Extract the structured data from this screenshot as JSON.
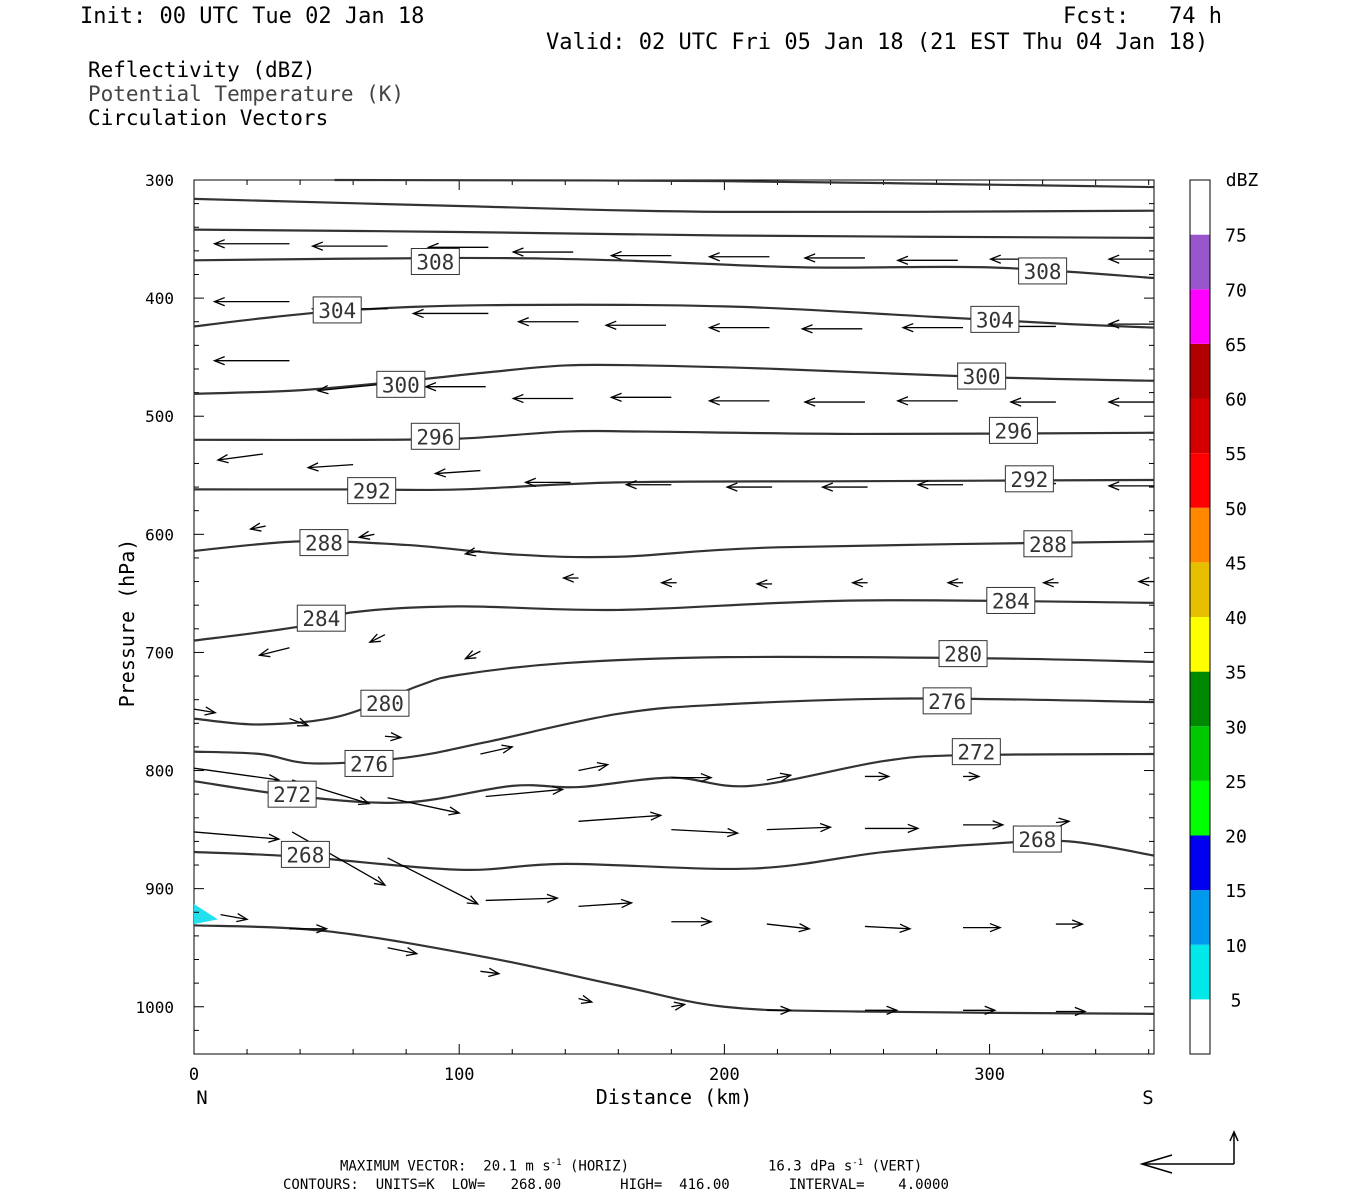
{
  "header": {
    "init": "Init: 00 UTC Tue 02 Jan 18",
    "fcst": "Fcst:   74 h",
    "valid": "Valid: 02 UTC Fri 05 Jan 18 (21 EST Thu 04 Jan 18)",
    "fields": [
      "Reflectivity (dBZ)",
      "Potential Temperature (K)",
      "Circulation Vectors"
    ]
  },
  "footer": {
    "max_vector_prefix": "MAXIMUM VECTOR:  20.1 m s",
    "max_vector_horiz": " (HORIZ)",
    "max_vector_vert_prefix": "16.3 dPa s",
    "max_vector_vert": " (VERT)",
    "exp": "-1",
    "contours": "CONTOURS:  UNITS=K  LOW=   268.00       HIGH=  416.00       INTERVAL=    4.0000"
  },
  "colors": {
    "contour": "#333333",
    "cyan_patch": "#22e0ee",
    "scale": [
      "#ffffff",
      "#00e8e8",
      "#0099ee",
      "#0000ee",
      "#00ff00",
      "#00c800",
      "#008800",
      "#ffff00",
      "#e6c000",
      "#ff8800",
      "#ff0000",
      "#d40000",
      "#b00000",
      "#ff00ff",
      "#9955cc",
      "#ffffff"
    ]
  },
  "chart_data": {
    "type": "cross-section contour",
    "xlabel": "Distance (km)",
    "ylabel": "Pressure (hPa)",
    "x_ticks": [
      0,
      100,
      200,
      300
    ],
    "x_end_labels": {
      "left": "N",
      "right": "S"
    },
    "y_ticks": [
      300,
      400,
      500,
      600,
      700,
      800,
      900,
      1000
    ],
    "xlim": [
      0,
      362
    ],
    "ylim": [
      1040,
      300
    ],
    "colorbar": {
      "title": "dBZ",
      "levels": [
        5,
        10,
        15,
        20,
        25,
        30,
        35,
        40,
        45,
        50,
        55,
        60,
        65,
        70,
        75
      ]
    },
    "theta_contours": [
      {
        "label": "",
        "points": [
          [
            53,
            300
          ],
          [
            200,
            301
          ],
          [
            362,
            306
          ]
        ],
        "labels_at": []
      },
      {
        "label": "",
        "points": [
          [
            0,
            316
          ],
          [
            100,
            322
          ],
          [
            200,
            327
          ],
          [
            362,
            326
          ]
        ],
        "labels_at": []
      },
      {
        "label": "",
        "points": [
          [
            0,
            342
          ],
          [
            100,
            344
          ],
          [
            200,
            347
          ],
          [
            362,
            349
          ]
        ],
        "labels_at": []
      },
      {
        "label": "308",
        "points": [
          [
            0,
            368
          ],
          [
            100,
            366
          ],
          [
            160,
            368
          ],
          [
            230,
            374
          ],
          [
            300,
            374
          ],
          [
            362,
            383
          ]
        ],
        "labels_at": [
          [
            91,
            369
          ],
          [
            320,
            377
          ]
        ]
      },
      {
        "label": "304",
        "points": [
          [
            0,
            424
          ],
          [
            30,
            416
          ],
          [
            60,
            410
          ],
          [
            110,
            406
          ],
          [
            200,
            407
          ],
          [
            280,
            416
          ],
          [
            330,
            422
          ],
          [
            362,
            425
          ]
        ],
        "labels_at": [
          [
            54,
            410
          ],
          [
            302,
            418
          ]
        ]
      },
      {
        "label": "300",
        "points": [
          [
            0,
            481
          ],
          [
            40,
            478
          ],
          [
            80,
            470
          ],
          [
            110,
            463
          ],
          [
            140,
            457
          ],
          [
            170,
            457
          ],
          [
            220,
            460
          ],
          [
            300,
            467
          ],
          [
            362,
            470
          ]
        ],
        "labels_at": [
          [
            78,
            473
          ],
          [
            297,
            466
          ]
        ]
      },
      {
        "label": "296",
        "points": [
          [
            0,
            520
          ],
          [
            60,
            520
          ],
          [
            100,
            519
          ],
          [
            140,
            513
          ],
          [
            170,
            513
          ],
          [
            250,
            515
          ],
          [
            362,
            514
          ]
        ],
        "labels_at": [
          [
            91,
            517
          ],
          [
            309,
            512
          ]
        ]
      },
      {
        "label": "292",
        "points": [
          [
            0,
            562
          ],
          [
            60,
            562
          ],
          [
            100,
            562
          ],
          [
            160,
            556
          ],
          [
            250,
            555
          ],
          [
            362,
            554
          ]
        ],
        "labels_at": [
          [
            67,
            563
          ],
          [
            315,
            553
          ]
        ]
      },
      {
        "label": "288",
        "points": [
          [
            0,
            614
          ],
          [
            40,
            606
          ],
          [
            80,
            609
          ],
          [
            120,
            617
          ],
          [
            160,
            619
          ],
          [
            220,
            611
          ],
          [
            362,
            606
          ]
        ],
        "labels_at": [
          [
            49,
            607
          ],
          [
            322,
            608
          ]
        ]
      },
      {
        "label": "284",
        "points": [
          [
            0,
            690
          ],
          [
            40,
            678
          ],
          [
            60,
            666
          ],
          [
            100,
            661
          ],
          [
            160,
            664
          ],
          [
            250,
            656
          ],
          [
            362,
            658
          ]
        ],
        "labels_at": [
          [
            48,
            671
          ],
          [
            308,
            656
          ]
        ]
      },
      {
        "label": "280",
        "points": [
          [
            0,
            756
          ],
          [
            25,
            761
          ],
          [
            55,
            754
          ],
          [
            85,
            728
          ],
          [
            100,
            719
          ],
          [
            140,
            709
          ],
          [
            200,
            704
          ],
          [
            300,
            705
          ],
          [
            362,
            708
          ]
        ],
        "labels_at": [
          [
            72,
            743
          ],
          [
            290,
            701
          ]
        ]
      },
      {
        "label": "276",
        "points": [
          [
            0,
            784
          ],
          [
            25,
            786
          ],
          [
            45,
            794
          ],
          [
            80,
            789
          ],
          [
            110,
            776
          ],
          [
            160,
            752
          ],
          [
            200,
            744
          ],
          [
            270,
            739
          ],
          [
            362,
            742
          ]
        ],
        "labels_at": [
          [
            66,
            794
          ],
          [
            284,
            741
          ]
        ]
      },
      {
        "label": "272",
        "points": [
          [
            0,
            809
          ],
          [
            40,
            822
          ],
          [
            80,
            827
          ],
          [
            120,
            813
          ],
          [
            145,
            814
          ],
          [
            180,
            806
          ],
          [
            210,
            813
          ],
          [
            260,
            792
          ],
          [
            290,
            787
          ],
          [
            362,
            786
          ]
        ],
        "labels_at": [
          [
            37,
            820
          ],
          [
            295,
            784
          ]
        ]
      },
      {
        "label": "268",
        "points": [
          [
            0,
            869
          ],
          [
            40,
            873
          ],
          [
            100,
            884
          ],
          [
            140,
            879
          ],
          [
            210,
            883
          ],
          [
            260,
            869
          ],
          [
            300,
            862
          ],
          [
            330,
            860
          ],
          [
            362,
            872
          ]
        ],
        "labels_at": [
          [
            42,
            871
          ],
          [
            318,
            858
          ]
        ]
      },
      {
        "label": "",
        "points": [
          [
            0,
            931
          ],
          [
            50,
            936
          ],
          [
            110,
            958
          ],
          [
            160,
            982
          ],
          [
            200,
            1000
          ],
          [
            250,
            1004
          ],
          [
            362,
            1006
          ]
        ],
        "labels_at": []
      }
    ],
    "vectors": [
      [
        36,
        354,
        5,
        0
      ],
      [
        73,
        356,
        5,
        0
      ],
      [
        111,
        357,
        4,
        0
      ],
      [
        143,
        361,
        4,
        0
      ],
      [
        180,
        364,
        4,
        0
      ],
      [
        217,
        365,
        4,
        0
      ],
      [
        253,
        366,
        4,
        0
      ],
      [
        288,
        368,
        4,
        0
      ],
      [
        323,
        367,
        4,
        0
      ],
      [
        362,
        367,
        3,
        0
      ],
      [
        36,
        403,
        5,
        0
      ],
      [
        73,
        409,
        5,
        0
      ],
      [
        111,
        413,
        5,
        0
      ],
      [
        145,
        420,
        4,
        0
      ],
      [
        178,
        423,
        4,
        0
      ],
      [
        217,
        425,
        4,
        0
      ],
      [
        252,
        426,
        4,
        0
      ],
      [
        290,
        425,
        4,
        0
      ],
      [
        325,
        424,
        4,
        0
      ],
      [
        362,
        422,
        3,
        0
      ],
      [
        36,
        453,
        5,
        0
      ],
      [
        75,
        472,
        5,
        -0.5
      ],
      [
        110,
        475,
        4,
        0
      ],
      [
        143,
        485,
        4,
        0
      ],
      [
        180,
        484,
        4,
        0
      ],
      [
        217,
        487,
        4,
        0
      ],
      [
        253,
        488,
        4,
        0
      ],
      [
        288,
        487,
        4,
        0
      ],
      [
        325,
        488,
        3,
        0
      ],
      [
        362,
        488,
        3,
        0
      ],
      [
        26,
        532,
        3,
        -0.4
      ],
      [
        60,
        541,
        3,
        -0.2
      ],
      [
        108,
        546,
        3,
        -0.2
      ],
      [
        142,
        556,
        3,
        0
      ],
      [
        180,
        558,
        3,
        0
      ],
      [
        218,
        560,
        3,
        0
      ],
      [
        254,
        560,
        3,
        0
      ],
      [
        290,
        558,
        3,
        0
      ],
      [
        325,
        557,
        3,
        0
      ],
      [
        362,
        559,
        3,
        0
      ],
      [
        27,
        593,
        1,
        -0.2
      ],
      [
        68,
        600,
        1,
        -0.2
      ],
      [
        108,
        614,
        1,
        -0.2
      ],
      [
        145,
        637,
        1,
        0
      ],
      [
        182,
        641,
        1,
        0
      ],
      [
        218,
        642,
        1,
        0
      ],
      [
        254,
        641,
        1,
        0
      ],
      [
        290,
        641,
        1,
        0
      ],
      [
        326,
        641,
        1,
        0
      ],
      [
        362,
        640,
        1,
        0
      ],
      [
        36,
        696,
        2,
        -0.5
      ],
      [
        72,
        685,
        1,
        -0.5
      ],
      [
        108,
        699,
        1,
        -0.5
      ]
    ]
  }
}
